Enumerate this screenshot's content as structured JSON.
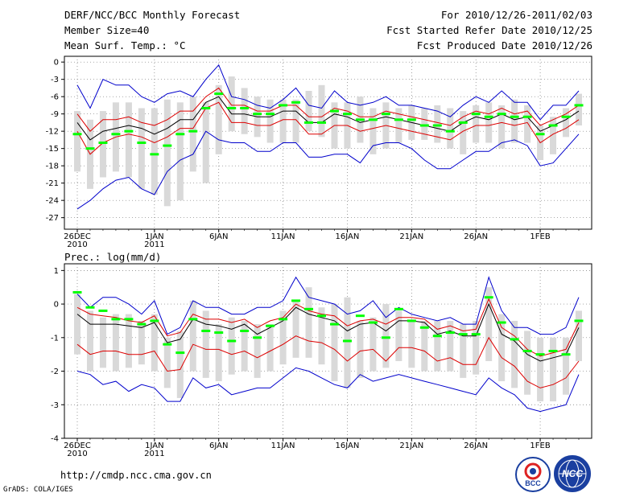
{
  "header": {
    "title": "DERF/NCC/BCC Monthly Forecast",
    "member_size": "Member Size=40",
    "variable": "Mean Surf. Temp.: °C",
    "forecast_for": "For 2010/12/26-2011/02/03",
    "started_refer": "Fcst Started Refer Date 2010/12/25",
    "produced": "Fcst Produced Date 2010/12/26"
  },
  "panel2_label": "Prec.: log(mm/d)",
  "footer": {
    "url": "http://cmdp.ncc.cma.gov.cn",
    "credit": "GrADS: COLA/IGES"
  },
  "logos": {
    "bcc": "BCC",
    "ncc": "NCC"
  },
  "colors": {
    "box": "#d9d9d9",
    "mean": "#00ff00",
    "envelope": "#0000cc",
    "spread": "#dd0000",
    "median": "#000000"
  },
  "chart_data": [
    {
      "type": "box-plume",
      "title": "Mean Surf. Temp.: °C",
      "ylim": [
        -29,
        1
      ],
      "yticks": [
        0,
        -3,
        -6,
        -9,
        -12,
        -15,
        -18,
        -21,
        -24,
        -27
      ],
      "ytick_labels": [
        "0",
        "-3",
        "-6",
        "-9",
        "-12",
        "-15",
        "-18",
        "-21",
        "-24",
        "-27"
      ],
      "x_days": 40,
      "xtick_days": [
        0,
        6,
        11,
        16,
        21,
        26,
        31,
        36
      ],
      "xtick_labels": [
        [
          "26DEC",
          "2010"
        ],
        [
          "1JAN",
          "2011"
        ],
        [
          "6JAN"
        ],
        [
          "11JAN"
        ],
        [
          "16JAN"
        ],
        [
          "21JAN"
        ],
        [
          "26JAN"
        ],
        [
          "1FEB"
        ]
      ],
      "series": {
        "box_top": [
          -8.5,
          -10,
          -8.5,
          -7,
          -7,
          -8,
          -8,
          -6.5,
          -7,
          -6,
          -7,
          -4,
          -2.5,
          -4.5,
          -6,
          -6.5,
          -6.5,
          -6.5,
          -5,
          -4,
          -7,
          -7,
          -6,
          -8,
          -7,
          -8,
          -7.5,
          -8,
          -7.5,
          -8,
          -8.5,
          -7.5,
          -7,
          -7.5,
          -6.5,
          -7.5,
          -11,
          -9.5,
          -8,
          -5.5
        ],
        "box_bottom": [
          -19,
          -22,
          -20,
          -19,
          -20,
          -22,
          -23,
          -25,
          -24,
          -19,
          -21,
          -16,
          -12,
          -12.5,
          -13,
          -14,
          -14,
          -14,
          -12,
          -13,
          -15,
          -15,
          -14,
          -16,
          -15,
          -14,
          -13.5,
          -13.5,
          -14,
          -15,
          -16,
          -14,
          -14,
          -15,
          -14,
          -14,
          -17,
          -16,
          -13,
          -11
        ],
        "mean": [
          -12.5,
          -15,
          -14,
          -12.5,
          -12,
          -14,
          -16,
          -14.5,
          -12.5,
          -12,
          -8,
          -5.5,
          -8,
          -8,
          -9,
          -9,
          -7.5,
          -7,
          -10.5,
          -10.5,
          -8.5,
          -9,
          -10,
          -10,
          -9,
          -10,
          -10,
          -11,
          -11,
          -12,
          -10.5,
          -9,
          -9.5,
          -9,
          -9.5,
          -9.5,
          -12.5,
          -11,
          -9.5,
          -7.5
        ],
        "median": [
          -10.5,
          -13.5,
          -12,
          -11.5,
          -11,
          -11.5,
          -12.5,
          -11.5,
          -10,
          -10,
          -7,
          -6,
          -9,
          -9,
          -9.5,
          -9.5,
          -8.5,
          -8.5,
          -10.5,
          -10.5,
          -9,
          -9.5,
          -10.5,
          -10,
          -9.5,
          -10,
          -10.5,
          -11,
          -11.5,
          -12,
          -10.5,
          -9.5,
          -10,
          -9,
          -10,
          -9.5,
          -12,
          -11,
          -10,
          -8.5
        ],
        "spread_top": [
          -9,
          -12,
          -10,
          -10,
          -9.5,
          -10.5,
          -11,
          -10,
          -8.5,
          -8.5,
          -6,
          -4.5,
          -7.5,
          -7.5,
          -8.5,
          -8.5,
          -7.5,
          -7.5,
          -9.5,
          -9.5,
          -8,
          -8.5,
          -9.5,
          -9.5,
          -8.5,
          -9,
          -9.5,
          -10,
          -10.5,
          -11,
          -9.5,
          -8.5,
          -9,
          -8,
          -9,
          -8.5,
          -11,
          -10,
          -9,
          -7.5
        ],
        "spread_bottom": [
          -12,
          -16,
          -14,
          -13,
          -12.5,
          -13,
          -14,
          -13,
          -11.5,
          -11.5,
          -8,
          -7,
          -10.5,
          -10.5,
          -11,
          -11,
          -10,
          -10,
          -12.5,
          -12.5,
          -11,
          -11,
          -12,
          -11.5,
          -11,
          -11.5,
          -12,
          -12.5,
          -13,
          -13.5,
          -12,
          -11,
          -11,
          -10.5,
          -11,
          -10.5,
          -14,
          -12.5,
          -11.5,
          -10
        ],
        "env_max": [
          -4,
          -8,
          -3,
          -4,
          -4,
          -6,
          -7,
          -5.5,
          -5,
          -6,
          -3,
          -0.5,
          -6,
          -6.5,
          -7.5,
          -8,
          -6.5,
          -4.5,
          -7.5,
          -8,
          -5,
          -7,
          -7.5,
          -7,
          -6,
          -7.5,
          -7.5,
          -8,
          -8.5,
          -9.5,
          -7.5,
          -6,
          -7,
          -5,
          -7,
          -7,
          -10,
          -7.5,
          -7.5,
          -5
        ],
        "env_min": [
          -25.5,
          -24,
          -22,
          -20.5,
          -20,
          -22,
          -23,
          -19,
          -17,
          -16,
          -12,
          -13.5,
          -14,
          -14,
          -15.5,
          -15.5,
          -14,
          -14,
          -16.5,
          -16.5,
          -16,
          -16,
          -17.5,
          -14.5,
          -14,
          -14,
          -15,
          -17,
          -18.5,
          -18.5,
          -17,
          -15.5,
          -15.5,
          -14,
          -13.5,
          -14.5,
          -18,
          -17.5,
          -15,
          -12.5
        ]
      }
    },
    {
      "type": "box-plume",
      "title": "Prec.: log(mm/d)",
      "ylim": [
        -4,
        1.2
      ],
      "yticks": [
        1,
        0,
        -1,
        -2,
        -3,
        -4
      ],
      "ytick_labels": [
        "1",
        "0",
        "-1",
        "-2",
        "-3",
        "-4"
      ],
      "x_days": 40,
      "xtick_days": [
        0,
        6,
        11,
        16,
        21,
        26,
        31,
        36
      ],
      "xtick_labels": [
        [
          "26DEC",
          "2010"
        ],
        [
          "1JAN",
          "2011"
        ],
        [
          "6JAN"
        ],
        [
          "11JAN"
        ],
        [
          "16JAN"
        ],
        [
          "21JAN"
        ],
        [
          "26JAN"
        ],
        [
          "1FEB"
        ]
      ],
      "series": {
        "box_top": [
          0.3,
          -0.2,
          -0.4,
          -0.3,
          -0.3,
          -0.5,
          -0.3,
          -1,
          -0.8,
          0.1,
          -0.2,
          -0.6,
          -0.4,
          -0.5,
          -0.6,
          -0.6,
          -0.2,
          0.1,
          0.5,
          -0.1,
          0,
          0.2,
          -0.5,
          -0.4,
          0,
          -0.2,
          -0.5,
          -0.5,
          -0.5,
          -0.5,
          -0.6,
          -0.5,
          0.5,
          -0.3,
          -0.5,
          -0.8,
          -1,
          -1,
          -1,
          -0.2
        ],
        "box_bottom": [
          -1.5,
          -2,
          -1.9,
          -2,
          -1.9,
          -1.8,
          -2,
          -2.5,
          -2.8,
          -2,
          -2.2,
          -2.3,
          -2.1,
          -2,
          -2.2,
          -2,
          -1.8,
          -1.6,
          -1.6,
          -1.8,
          -2.3,
          -2.5,
          -2.2,
          -2,
          -1.9,
          -1.7,
          -1.9,
          -2,
          -2,
          -2,
          -2.2,
          -2.1,
          -1.7,
          -2.3,
          -2.5,
          -2.7,
          -2.9,
          -2.9,
          -2.7,
          -1.7
        ],
        "mean": [
          0.35,
          -0.1,
          -0.2,
          -0.45,
          -0.45,
          -0.6,
          -0.5,
          -1.2,
          -1.45,
          -0.45,
          -0.8,
          -0.85,
          -1.1,
          -0.8,
          -1,
          -0.65,
          -0.45,
          0.1,
          -0.15,
          -0.35,
          -0.6,
          -1.1,
          -0.35,
          -0.55,
          -1,
          -0.15,
          -0.5,
          -0.7,
          -0.95,
          -0.85,
          -0.9,
          -0.9,
          0.2,
          -0.55,
          -1.05,
          -1.4,
          -1.5,
          -1.4,
          -1.5,
          -0.5
        ],
        "median": [
          -0.3,
          -0.6,
          -0.6,
          -0.6,
          -0.65,
          -0.7,
          -0.55,
          -1.15,
          -1.05,
          -0.45,
          -0.6,
          -0.65,
          -0.75,
          -0.6,
          -0.9,
          -0.7,
          -0.5,
          -0.1,
          -0.3,
          -0.4,
          -0.5,
          -0.8,
          -0.6,
          -0.55,
          -0.8,
          -0.5,
          -0.5,
          -0.55,
          -0.9,
          -0.8,
          -0.95,
          -0.95,
          0,
          -0.9,
          -1.1,
          -1.5,
          -1.7,
          -1.6,
          -1.5,
          -0.7
        ],
        "spread_top": [
          -0.1,
          -0.3,
          -0.35,
          -0.4,
          -0.5,
          -0.55,
          -0.35,
          -0.95,
          -0.85,
          -0.3,
          -0.45,
          -0.45,
          -0.55,
          -0.45,
          -0.7,
          -0.5,
          -0.4,
          0,
          -0.2,
          -0.3,
          -0.35,
          -0.65,
          -0.5,
          -0.45,
          -0.6,
          -0.4,
          -0.4,
          -0.45,
          -0.75,
          -0.65,
          -0.8,
          -0.75,
          0.15,
          -0.7,
          -0.95,
          -1.35,
          -1.55,
          -1.45,
          -1.35,
          -0.55
        ],
        "spread_bottom": [
          -1.2,
          -1.5,
          -1.4,
          -1.4,
          -1.5,
          -1.5,
          -1.4,
          -2,
          -1.95,
          -1.2,
          -1.35,
          -1.35,
          -1.5,
          -1.4,
          -1.6,
          -1.4,
          -1.2,
          -0.95,
          -1.1,
          -1.15,
          -1.35,
          -1.7,
          -1.4,
          -1.35,
          -1.7,
          -1.3,
          -1.3,
          -1.4,
          -1.7,
          -1.6,
          -1.8,
          -1.8,
          -1,
          -1.6,
          -1.85,
          -2.3,
          -2.5,
          -2.4,
          -2.2,
          -1.7
        ],
        "env_max": [
          0.3,
          -0.1,
          0.2,
          0.2,
          0,
          -0.3,
          0.1,
          -0.9,
          -0.7,
          0.1,
          -0.1,
          -0.1,
          -0.3,
          -0.3,
          -0.1,
          -0.1,
          0.1,
          0.8,
          0.2,
          0.1,
          0,
          -0.3,
          -0.2,
          0.1,
          -0.4,
          -0.1,
          -0.3,
          -0.4,
          -0.5,
          -0.4,
          -0.6,
          -0.6,
          0.8,
          -0.2,
          -0.7,
          -0.7,
          -0.9,
          -0.9,
          -0.7,
          0.2
        ],
        "env_min": [
          -2,
          -2.1,
          -2.4,
          -2.3,
          -2.6,
          -2.4,
          -2.5,
          -2.9,
          -2.9,
          -2.2,
          -2.5,
          -2.4,
          -2.7,
          -2.6,
          -2.5,
          -2.5,
          -2.2,
          -1.9,
          -2,
          -2.2,
          -2.4,
          -2.5,
          -2.1,
          -2.3,
          -2.2,
          -2.1,
          -2.2,
          -2.3,
          -2.4,
          -2.5,
          -2.6,
          -2.7,
          -2.2,
          -2.5,
          -2.7,
          -3.1,
          -3.2,
          -3.1,
          -3,
          -2.1
        ]
      }
    }
  ]
}
